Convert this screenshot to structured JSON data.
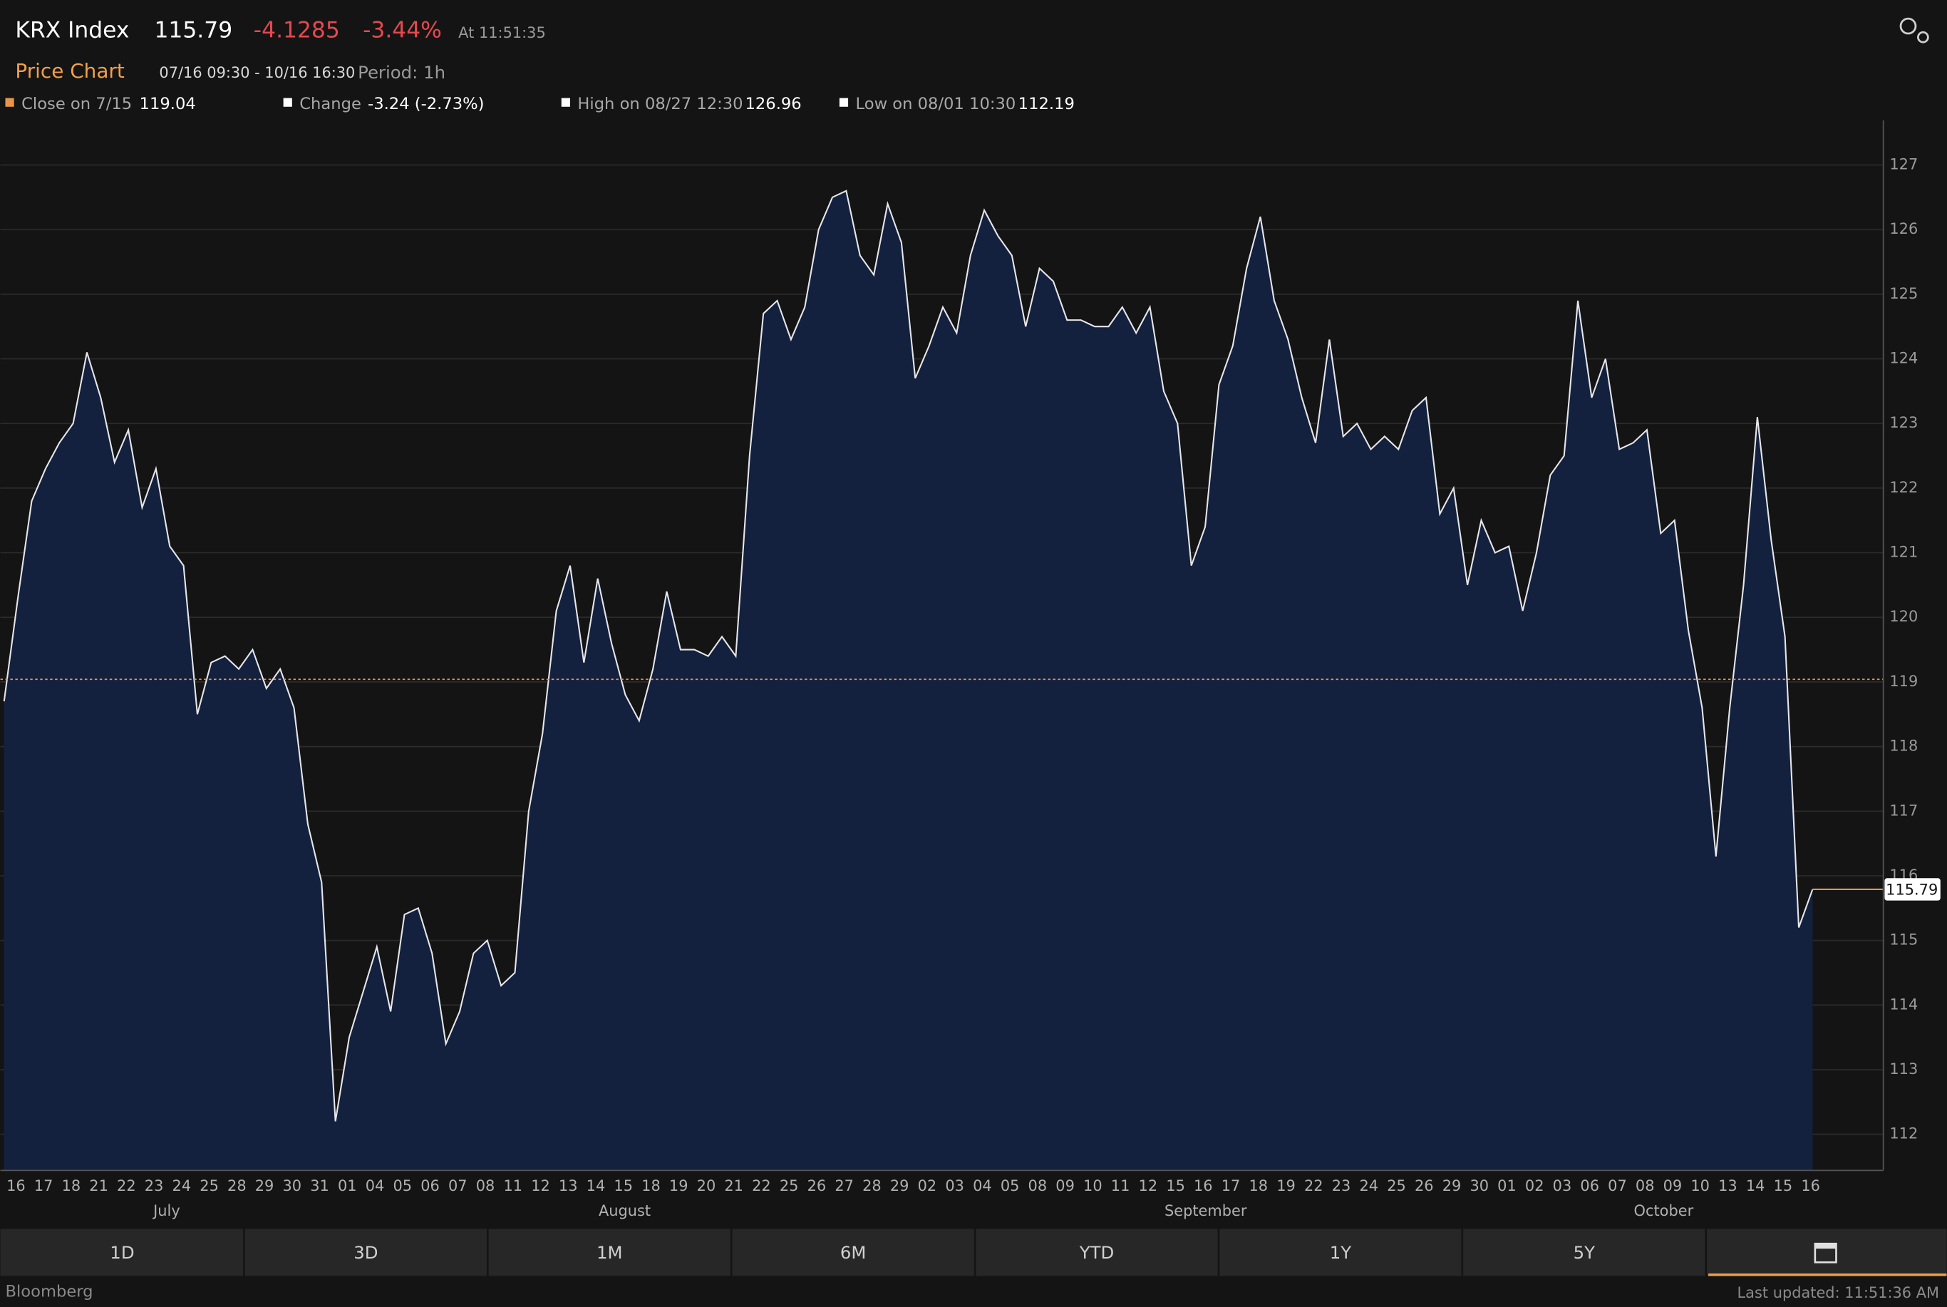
{
  "header": {
    "symbol": "KRX Index",
    "change": "-4.1285",
    "change_pct": "-3.44%",
    "time": "At 11:51:35",
    "chart_label": "Price Chart",
    "range": "07/16 09:30 - 10/16 16:30",
    "period": "Period: 1h"
  },
  "stats": [
    {
      "label": "Close on 7/15"
    },
    {
      "label": "Change",
      "value": "-3.24 (-2.73%)"
    },
    {
      "label": "High on 08/27 12:30",
      "value": "126.96"
    },
    {
      "label": "Low on 08/01 10:30",
      "value": "112.19"
    }
  ],
  "chart_data": {
    "type": "line",
    "categories": [
      "16",
      null,
      "17",
      null,
      "18",
      null,
      "21",
      null,
      "22",
      null,
      "23",
      null,
      "24",
      null,
      "25",
      null,
      "28",
      null,
      "29",
      null,
      "30",
      null,
      "31",
      null,
      "01",
      null,
      "04",
      null,
      "05",
      null,
      "06",
      null,
      "07",
      null,
      "08",
      null,
      "11",
      null,
      "12",
      null,
      "13",
      null,
      "14",
      null,
      "15",
      null,
      "18",
      null,
      "19",
      null,
      "20",
      null,
      "21",
      null,
      "22",
      null,
      "25",
      null,
      "26",
      null,
      "27",
      null,
      "28",
      null,
      "29",
      null,
      "02",
      null,
      "03",
      null,
      "04",
      null,
      "05",
      null,
      "08",
      null,
      "09",
      null,
      "10",
      null,
      "11",
      null,
      "12",
      null,
      "15",
      null,
      "16",
      null,
      "17",
      null,
      "18",
      null,
      "19",
      null,
      "22",
      null,
      "23",
      null,
      "24",
      null,
      "25",
      null,
      "26",
      null,
      "29",
      null,
      "30",
      null,
      "01",
      null,
      "02",
      null,
      "03",
      null,
      "06",
      null,
      "07",
      null,
      "08",
      null,
      "09",
      null,
      "10",
      null,
      "13",
      null,
      "14",
      null,
      "15",
      null,
      "16",
      null
    ],
    "months": [
      "July",
      "August",
      "September",
      "October"
    ],
    "values": [
      118.7,
      120.3,
      121.8,
      122.3,
      122.7,
      123.0,
      124.1,
      123.4,
      122.4,
      122.9,
      121.7,
      122.3,
      121.1,
      120.8,
      118.5,
      119.3,
      119.4,
      119.2,
      119.5,
      118.9,
      119.2,
      118.6,
      116.8,
      115.9,
      112.2,
      113.5,
      114.2,
      114.9,
      113.9,
      115.4,
      115.5,
      114.8,
      113.4,
      113.9,
      114.8,
      115.0,
      114.3,
      114.5,
      117.0,
      118.2,
      120.1,
      120.8,
      119.3,
      120.6,
      119.6,
      118.8,
      118.4,
      119.2,
      120.4,
      119.5,
      119.5,
      119.4,
      119.7,
      119.4,
      122.5,
      124.7,
      124.9,
      124.3,
      124.8,
      126.0,
      126.5,
      126.6,
      125.6,
      125.3,
      126.4,
      125.8,
      123.7,
      124.2,
      124.8,
      124.4,
      125.6,
      126.3,
      125.9,
      125.6,
      124.5,
      125.4,
      125.2,
      124.6,
      124.6,
      124.5,
      124.5,
      124.8,
      124.4,
      124.8,
      123.5,
      123.0,
      120.8,
      121.4,
      123.6,
      124.2,
      125.4,
      126.2,
      124.9,
      124.3,
      123.4,
      122.7,
      124.3,
      122.8,
      123.0,
      122.6,
      122.8,
      122.6,
      123.2,
      123.4,
      121.6,
      122.0,
      120.5,
      121.5,
      121.0,
      121.1,
      120.1,
      121.0,
      122.2,
      122.5,
      124.9,
      123.4,
      124.0,
      122.6,
      122.7,
      122.9,
      121.3,
      121.5,
      119.8,
      118.6,
      116.3,
      118.6,
      120.5,
      123.1,
      121.2,
      119.7,
      115.2,
      115.79
    ],
    "color": "#e6e6ea",
    "fill": "#13213f",
    "ylim": [
      111.44,
      127.69
    ],
    "yticks": [
      112,
      113,
      114,
      115,
      116,
      117,
      118,
      119,
      120,
      121,
      122,
      123,
      124,
      125,
      126,
      127
    ],
    "grid": true,
    "reference_line": {
      "value": 119.04,
      "color": "#e8954a"
    }
  },
  "buttons": [
    "1D",
    "3D",
    "1M",
    "6M",
    "YTD",
    "1Y",
    "5Y"
  ],
  "footer": {
    "brand": "Bloomberg",
    "updated": "Last updated: 11:51:36 AM"
  }
}
